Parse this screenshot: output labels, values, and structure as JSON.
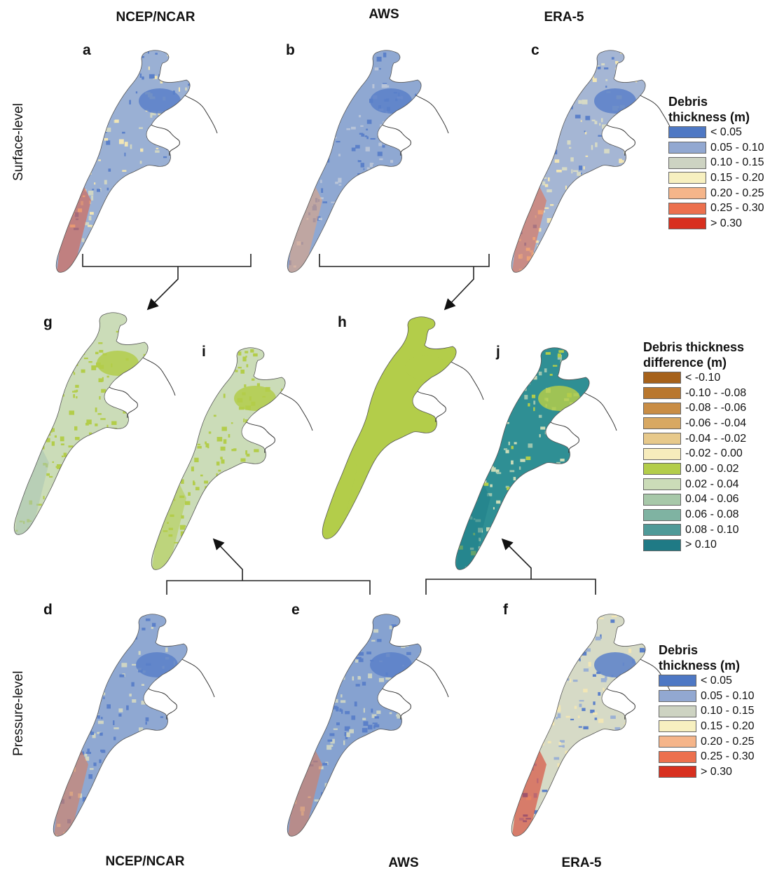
{
  "column_titles_top": [
    "NCEP/NCAR",
    "AWS",
    "ERA-5"
  ],
  "column_titles_bottom": [
    "NCEP/NCAR",
    "AWS",
    "ERA-5"
  ],
  "row_labels": {
    "top": "Surface-level",
    "bottom": "Pressure-level"
  },
  "panels": [
    {
      "letter": "a",
      "dataset": "NCEP/NCAR",
      "level": "Surface-level",
      "scheme": "thickness",
      "dominant": "#9ab0d4",
      "secondary": [
        "#5b80c9",
        "#cfd5c4",
        "#f2e6b5"
      ],
      "edge": "#e05a3a"
    },
    {
      "letter": "b",
      "dataset": "AWS",
      "level": "Surface-level",
      "scheme": "thickness",
      "dominant": "#8fa8d2",
      "secondary": [
        "#5b80c9",
        "#b8c4d8"
      ],
      "edge": "#e8a47a"
    },
    {
      "letter": "c",
      "dataset": "ERA-5",
      "level": "Surface-level",
      "scheme": "thickness",
      "dominant": "#a5b6d4",
      "secondary": [
        "#5b80c9",
        "#d6dac6",
        "#f2e6b5"
      ],
      "edge": "#e86a45"
    },
    {
      "letter": "d",
      "dataset": "NCEP/NCAR",
      "level": "Pressure-level",
      "scheme": "thickness",
      "dominant": "#8fa8d2",
      "secondary": [
        "#5b80c9",
        "#cfd5c4"
      ],
      "edge": "#e07a52"
    },
    {
      "letter": "e",
      "dataset": "AWS",
      "level": "Pressure-level",
      "scheme": "thickness",
      "dominant": "#86a2d0",
      "secondary": [
        "#5b80c9",
        "#c9d2c6"
      ],
      "edge": "#e07a52"
    },
    {
      "letter": "f",
      "dataset": "ERA-5",
      "level": "Pressure-level",
      "scheme": "thickness",
      "dominant": "#d6dac6",
      "secondary": [
        "#f2e6b5",
        "#9ab0d4",
        "#5b80c9"
      ],
      "edge": "#d8301f"
    },
    {
      "letter": "g",
      "scheme": "difference",
      "dominant": "#cbdcb8",
      "secondary": [
        "#b3cd4a"
      ],
      "edge": "#a9c4b4"
    },
    {
      "letter": "h",
      "scheme": "difference",
      "dominant": "#b3cd4a",
      "secondary": [],
      "edge": "#b3cd4a"
    },
    {
      "letter": "i",
      "scheme": "difference",
      "dominant": "#cbdcb8",
      "secondary": [
        "#b3cd4a"
      ],
      "edge": "#b3cd4a"
    },
    {
      "letter": "j",
      "scheme": "difference",
      "dominant": "#2f8f94",
      "secondary": [
        "#9cc5ae",
        "#cbdcb8",
        "#b3cd4a"
      ],
      "edge": "#1f7f88"
    }
  ],
  "legend_thickness": {
    "title": [
      "Debris",
      "thickness (m)"
    ],
    "classes": [
      {
        "label": "< 0.05",
        "color": "#4e78c4"
      },
      {
        "label": "0.05 - 0.10",
        "color": "#92a8d1"
      },
      {
        "label": "0.10 - 0.15",
        "color": "#cdd3c2"
      },
      {
        "label": "0.15 - 0.20",
        "color": "#f7f0c0"
      },
      {
        "label": "0.20 - 0.25",
        "color": "#f5b58a"
      },
      {
        "label": "0.25 - 0.30",
        "color": "#ec704e"
      },
      {
        "label": "> 0.30",
        "color": "#d8301f"
      }
    ]
  },
  "legend_difference": {
    "title": [
      "Debris thickness",
      "difference (m)"
    ],
    "classes": [
      {
        "label": "< -0.10",
        "color": "#a6611a"
      },
      {
        "label": "-0.10 - -0.08",
        "color": "#b9772e"
      },
      {
        "label": "-0.08 - -0.06",
        "color": "#c98d45"
      },
      {
        "label": "-0.06 - -0.04",
        "color": "#d8a862"
      },
      {
        "label": "-0.04 - -0.02",
        "color": "#e7c98b"
      },
      {
        "label": "-0.02 - 0.00",
        "color": "#f7ecbc"
      },
      {
        "label": "0.00 - 0.02",
        "color": "#b3cd4a"
      },
      {
        "label": "0.02 - 0.04",
        "color": "#cbdcb8"
      },
      {
        "label": "0.04 - 0.06",
        "color": "#a7c8a9"
      },
      {
        "label": "0.06 - 0.08",
        "color": "#7fb3a2"
      },
      {
        "label": "0.08 - 0.10",
        "color": "#4f9a98"
      },
      {
        "label": "> 0.10",
        "color": "#1f7a85"
      }
    ]
  }
}
